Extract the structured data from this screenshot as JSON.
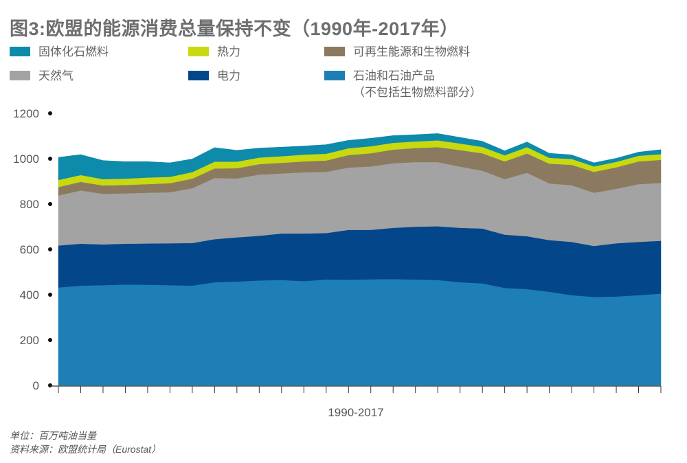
{
  "title": "图3:欧盟的能源消费总量保持不变（1990年-2017年）",
  "legend": [
    {
      "label": "固体化石燃料",
      "color": "#0e8aab"
    },
    {
      "label": "热力",
      "color": "#c8d90f"
    },
    {
      "label": "可再生能源和生物燃料",
      "color": "#8b7a60"
    },
    {
      "label": "天然气",
      "color": "#a3a3a3"
    },
    {
      "label": "电力",
      "color": "#04468a"
    },
    {
      "label": "石油和石油产品",
      "label2": "（不包括生物燃料部分）",
      "color": "#1e7fb6"
    }
  ],
  "notes": {
    "unit": "单位：百万吨油当量",
    "source": "资料来源：欧盟统计局（Eurostat）"
  },
  "chart_data": {
    "type": "area",
    "stacked": true,
    "title": "图3:欧盟的能源消费总量保持不变（1990年-2017年）",
    "xlabel": "1990-2017",
    "ylabel": "",
    "ylim": [
      0,
      1200
    ],
    "yticks": [
      0,
      200,
      400,
      600,
      800,
      1000,
      1200
    ],
    "x": [
      1990,
      1991,
      1992,
      1993,
      1994,
      1995,
      1996,
      1997,
      1998,
      1999,
      2000,
      2001,
      2002,
      2003,
      2004,
      2005,
      2006,
      2007,
      2008,
      2009,
      2010,
      2011,
      2012,
      2013,
      2014,
      2015,
      2016,
      2017
    ],
    "series": [
      {
        "name": "石油和石油产品（不包括生物燃料部分）",
        "color": "#1e7fb6",
        "values": [
          432,
          440,
          442,
          445,
          444,
          442,
          440,
          455,
          458,
          463,
          465,
          460,
          467,
          466,
          468,
          469,
          467,
          465,
          455,
          450,
          430,
          425,
          413,
          398,
          390,
          392,
          398,
          405
        ]
      },
      {
        "name": "电力",
        "color": "#04468a",
        "values": [
          185,
          185,
          180,
          180,
          182,
          185,
          188,
          190,
          195,
          197,
          205,
          210,
          205,
          220,
          218,
          226,
          233,
          237,
          240,
          242,
          235,
          233,
          228,
          235,
          225,
          235,
          235,
          233
        ]
      },
      {
        "name": "天然气",
        "color": "#a3a3a3",
        "values": [
          221,
          235,
          223,
          222,
          224,
          225,
          242,
          270,
          260,
          270,
          265,
          270,
          270,
          275,
          280,
          285,
          285,
          283,
          270,
          255,
          245,
          280,
          250,
          250,
          235,
          240,
          255,
          255
        ]
      },
      {
        "name": "可再生能源和生物燃料",
        "color": "#8b7a60",
        "values": [
          37,
          38,
          37,
          37,
          38,
          40,
          42,
          42,
          45,
          46,
          47,
          48,
          50,
          55,
          58,
          60,
          62,
          66,
          73,
          77,
          78,
          85,
          87,
          90,
          92,
          95,
          100,
          102
        ]
      },
      {
        "name": "热力",
        "color": "#c8d90f",
        "values": [
          31,
          30,
          28,
          28,
          29,
          28,
          29,
          30,
          29,
          29,
          29,
          30,
          30,
          30,
          31,
          30,
          29,
          30,
          29,
          28,
          27,
          28,
          26,
          26,
          24,
          24,
          25,
          25
        ]
      },
      {
        "name": "固体化石燃料",
        "color": "#0e8aab",
        "values": [
          100,
          90,
          82,
          75,
          70,
          62,
          58,
          62,
          50,
          42,
          40,
          38,
          40,
          35,
          35,
          32,
          30,
          30,
          27,
          25,
          20,
          23,
          20,
          18,
          16,
          16,
          16,
          20
        ]
      }
    ],
    "grid": false,
    "legend_position": "top"
  }
}
